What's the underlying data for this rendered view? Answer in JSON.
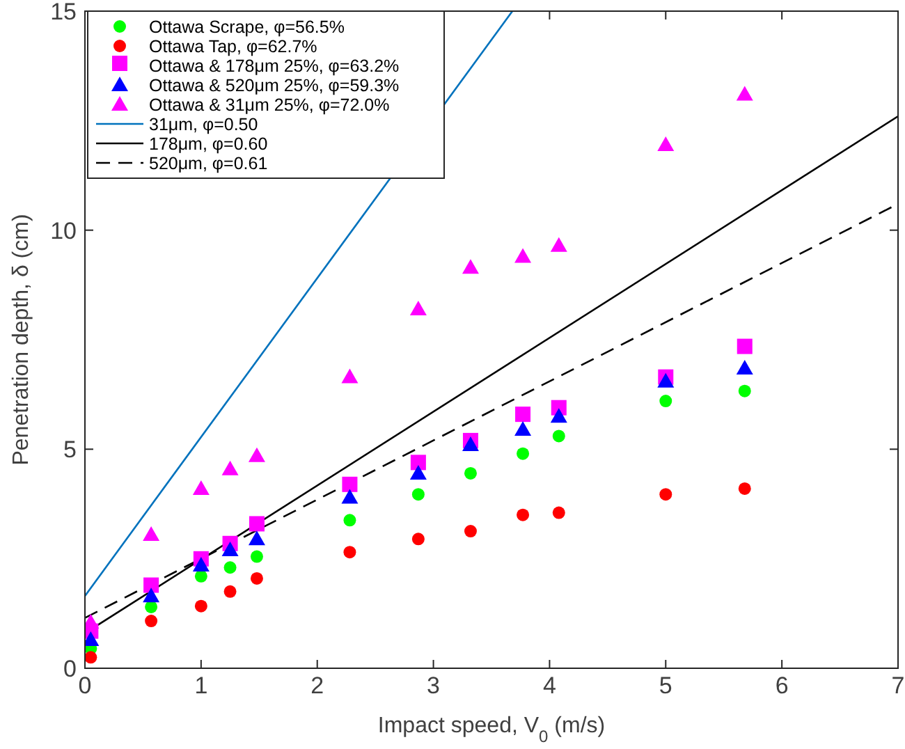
{
  "chart_data": {
    "type": "scatter",
    "xlabel": "Impact speed, V$_{0}$ (m/s)",
    "ylabel": "Penetration depth, δ (cm)",
    "xlim": [
      0,
      7
    ],
    "ylim": [
      0,
      15
    ],
    "xticks": [
      0,
      1,
      2,
      3,
      4,
      5,
      6,
      7
    ],
    "yticks": [
      0,
      5,
      10,
      15
    ],
    "grid": false,
    "legend": "top left",
    "x": [
      0.05,
      0.57,
      1.0,
      1.25,
      1.48,
      2.28,
      2.87,
      3.32,
      3.77,
      4.08,
      5.0,
      5.68
    ],
    "series": [
      {
        "name": "Ottawa Scrape, φ=56.5%",
        "color": "#00ff00",
        "marker": "circle",
        "values": [
          0.45,
          1.4,
          2.1,
          2.3,
          2.55,
          3.38,
          3.97,
          4.45,
          4.9,
          5.3,
          6.1,
          6.33
        ]
      },
      {
        "name": "Ottawa Tap, φ=62.7%",
        "color": "#ff0000",
        "marker": "circle",
        "values": [
          0.25,
          1.08,
          1.42,
          1.75,
          2.05,
          2.65,
          2.95,
          3.13,
          3.5,
          3.55,
          3.97,
          4.1
        ]
      },
      {
        "name": "Ottawa & 178μm 25%, φ=63.2%",
        "color": "#ff00ff",
        "marker": "square",
        "values": [
          0.8,
          1.85,
          2.45,
          2.8,
          3.25,
          4.15,
          4.65,
          5.15,
          5.75,
          5.9,
          6.6,
          7.3
        ]
      },
      {
        "name": "Ottawa & 520μm 25%, φ=59.3%",
        "color": "#0000ff",
        "marker": "triangle",
        "values": [
          0.65,
          1.65,
          2.35,
          2.7,
          2.95,
          3.9,
          4.45,
          5.1,
          5.45,
          5.75,
          6.55,
          6.85
        ]
      },
      {
        "name": "Ottawa & 31μm 25%, φ=72.0%",
        "color": "#ff00ff",
        "marker": "triangle",
        "values": [
          1.05,
          3.05,
          4.1,
          4.55,
          4.85,
          6.65,
          8.2,
          9.15,
          9.4,
          9.65,
          11.95,
          13.1
        ]
      },
      {
        "name": "31μm, φ=0.50",
        "type": "line",
        "color": "#0072bd",
        "line_style": "solid",
        "x": [
          0,
          3.68
        ],
        "values": [
          1.65,
          15
        ]
      },
      {
        "name": "178μm, φ=0.60",
        "type": "line",
        "color": "#000000",
        "line_style": "solid",
        "x": [
          0,
          7
        ],
        "values": [
          0.8,
          12.6
        ]
      },
      {
        "name": "520μm, φ=0.61",
        "type": "line",
        "color": "#000000",
        "line_style": "dashed",
        "x": [
          0,
          7
        ],
        "values": [
          1.15,
          10.6
        ]
      }
    ]
  }
}
